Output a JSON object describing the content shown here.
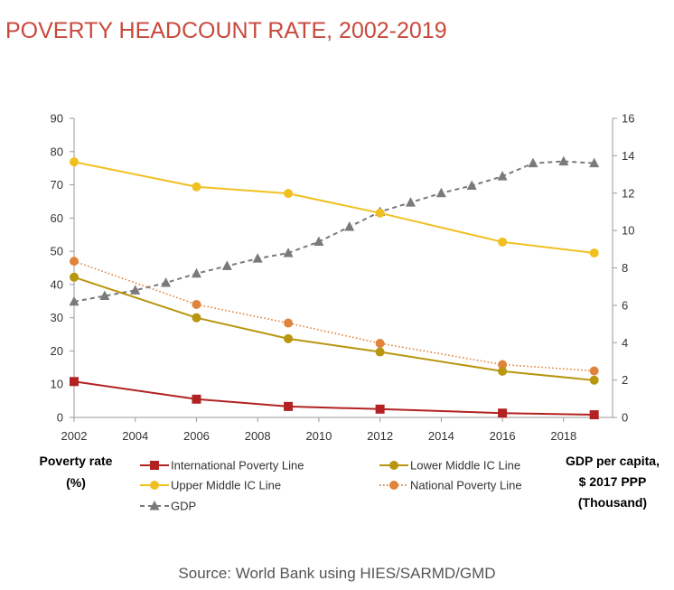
{
  "chart_data": {
    "type": "line",
    "title": "POVERTY HEADCOUNT RATE, 2002-2019",
    "y_left_label": [
      "Poverty rate",
      "(%)"
    ],
    "y_right_label": [
      "GDP per capita,",
      "$ 2017 PPP",
      "(Thousand)"
    ],
    "source": "Source: World Bank using HIES/SARMD/GMD",
    "x_ticks": [
      2002,
      2004,
      2006,
      2008,
      2010,
      2012,
      2014,
      2016,
      2018
    ],
    "xlim": [
      2002,
      2019.6
    ],
    "y_left_ticks": [
      0,
      10,
      20,
      30,
      40,
      50,
      60,
      70,
      80,
      90
    ],
    "ylim_left": [
      0,
      90
    ],
    "y_right_ticks": [
      0,
      2,
      4,
      6,
      8,
      10,
      12,
      14,
      16
    ],
    "ylim_right": [
      0,
      16
    ],
    "grid": false,
    "legend_position": "bottom",
    "series": [
      {
        "name": "International Poverty Line",
        "axis": "left",
        "color": "#b22222",
        "marker": "square",
        "dash": "solid",
        "points": [
          [
            2002,
            10.8
          ],
          [
            2006,
            5.5
          ],
          [
            2009,
            3.3
          ],
          [
            2012,
            2.5
          ],
          [
            2016,
            1.3
          ],
          [
            2019,
            0.8
          ]
        ]
      },
      {
        "name": "Lower Middle IC Line",
        "axis": "left",
        "color": "#b8960f",
        "marker": "circle",
        "dash": "solid",
        "points": [
          [
            2002,
            42.2
          ],
          [
            2006,
            30
          ],
          [
            2009,
            23.7
          ],
          [
            2012,
            19.7
          ],
          [
            2016,
            13.9
          ],
          [
            2019,
            11.2
          ]
        ]
      },
      {
        "name": "Upper Middle IC Line",
        "axis": "left",
        "color": "#f0c020",
        "marker": "circle",
        "dash": "solid",
        "points": [
          [
            2002,
            76.9
          ],
          [
            2006,
            69.4
          ],
          [
            2009,
            67.4
          ],
          [
            2012,
            61.5
          ],
          [
            2016,
            52.8
          ],
          [
            2019,
            49.5
          ]
        ]
      },
      {
        "name": "National Poverty Line",
        "axis": "left",
        "color": "#e0843d",
        "marker": "circle",
        "dash": "dotted",
        "points": [
          [
            2002,
            47
          ],
          [
            2006,
            34
          ],
          [
            2009,
            28.4
          ],
          [
            2012,
            22.3
          ],
          [
            2016,
            15.9
          ],
          [
            2019,
            14
          ]
        ]
      },
      {
        "name": "GDP",
        "axis": "right",
        "color": "#7a7a7a",
        "marker": "triangle",
        "dash": "dashed",
        "points": [
          [
            2002,
            6.2
          ],
          [
            2003,
            6.5
          ],
          [
            2004,
            6.8
          ],
          [
            2005,
            7.2
          ],
          [
            2006,
            7.7
          ],
          [
            2007,
            8.1
          ],
          [
            2008,
            8.5
          ],
          [
            2009,
            8.8
          ],
          [
            2010,
            9.4
          ],
          [
            2011,
            10.2
          ],
          [
            2012,
            11
          ],
          [
            2013,
            11.5
          ],
          [
            2014,
            12
          ],
          [
            2015,
            12.4
          ],
          [
            2016,
            12.9
          ],
          [
            2017,
            13.6
          ],
          [
            2018,
            13.7
          ],
          [
            2019,
            13.6
          ]
        ]
      }
    ]
  }
}
